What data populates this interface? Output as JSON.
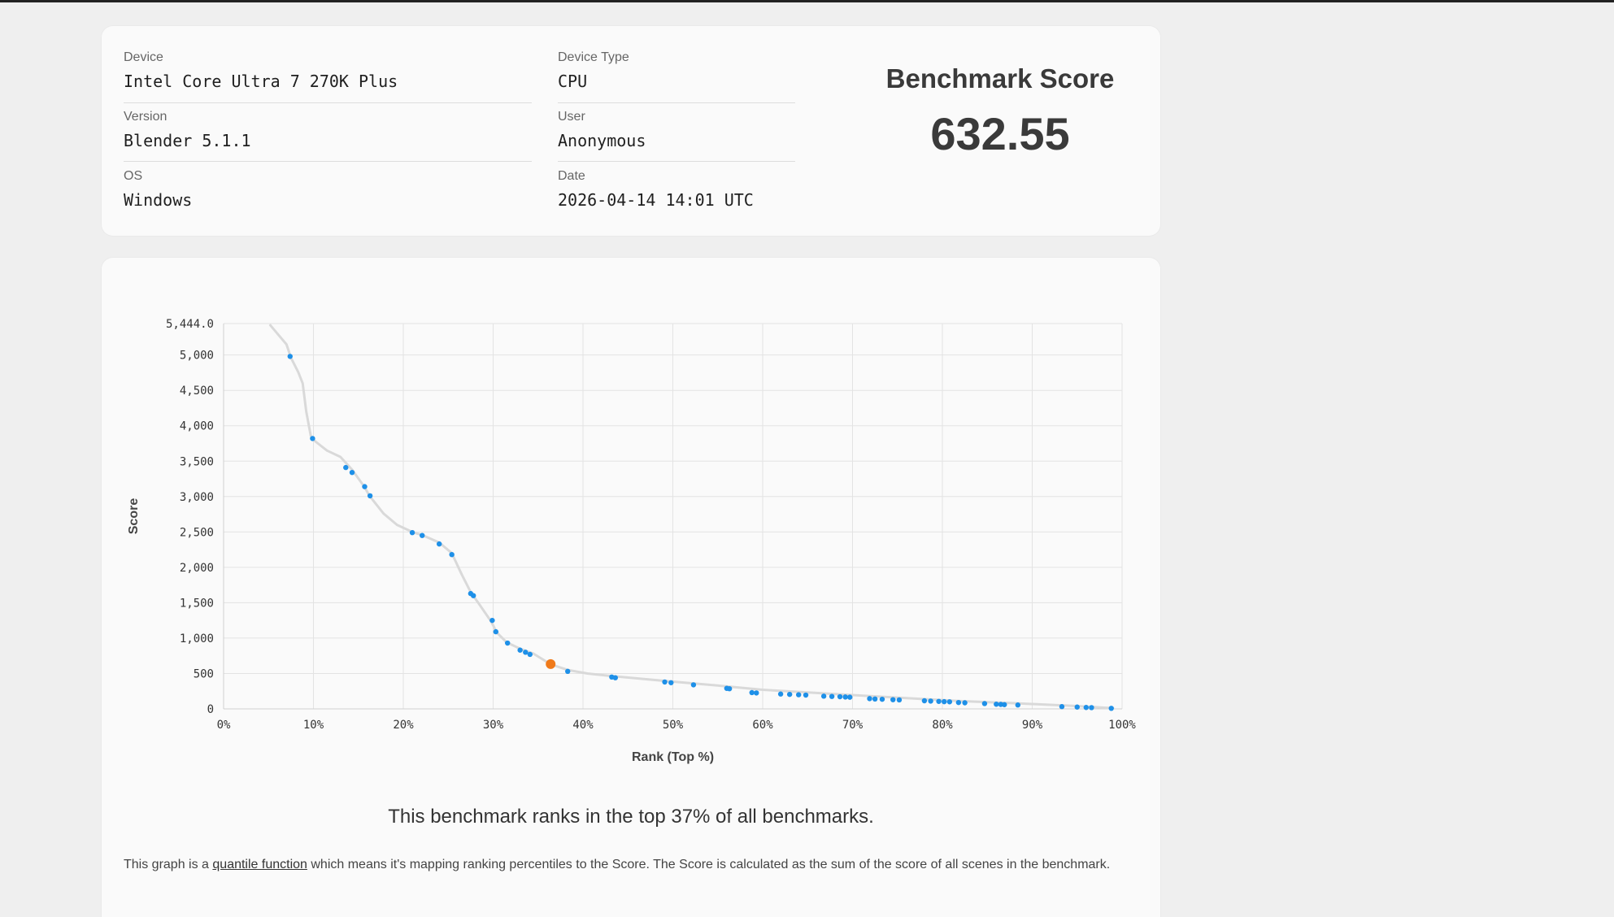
{
  "info": {
    "device_label": "Device",
    "device_value": "Intel Core Ultra 7 270K Plus",
    "device_type_label": "Device Type",
    "device_type_value": "CPU",
    "version_label": "Version",
    "version_value": "Blender 5.1.1",
    "user_label": "User",
    "user_value": "Anonymous",
    "os_label": "OS",
    "os_value": "Windows",
    "date_label": "Date",
    "date_value": "2026-04-14 14:01 UTC",
    "score_title": "Benchmark Score",
    "score_value": "632.55"
  },
  "chart_data": {
    "type": "scatter",
    "title": "",
    "xlabel": "Rank (Top %)",
    "ylabel": "Score",
    "xlim": [
      0,
      100
    ],
    "ylim": [
      0,
      5444
    ],
    "x_ticks": [
      "0%",
      "10%",
      "20%",
      "30%",
      "40%",
      "50%",
      "60%",
      "70%",
      "80%",
      "90%",
      "100%"
    ],
    "y_ticks": [
      "0",
      "500",
      "1,000",
      "1,500",
      "2,000",
      "2,500",
      "3,000",
      "3,500",
      "4,000",
      "4,500",
      "5,000",
      "5,444.0"
    ],
    "grid": true,
    "colors": {
      "points": "#1e90e8",
      "highlight": "#f07a1a",
      "curve": "#d9d9d9",
      "grid": "#e3e3e3"
    },
    "curve": [
      [
        5.2,
        5420
      ],
      [
        6.0,
        5300
      ],
      [
        7.0,
        5150
      ],
      [
        7.5,
        4960
      ],
      [
        8.3,
        4760
      ],
      [
        8.8,
        4600
      ],
      [
        9.2,
        4200
      ],
      [
        9.7,
        3860
      ],
      [
        10.2,
        3780
      ],
      [
        11.5,
        3650
      ],
      [
        13.0,
        3560
      ],
      [
        14.3,
        3380
      ],
      [
        15.6,
        3150
      ],
      [
        16.3,
        3000
      ],
      [
        17.8,
        2760
      ],
      [
        19.3,
        2600
      ],
      [
        21.0,
        2500
      ],
      [
        22.2,
        2450
      ],
      [
        24.0,
        2350
      ],
      [
        25.4,
        2200
      ],
      [
        26.5,
        1900
      ],
      [
        27.5,
        1650
      ],
      [
        28.5,
        1470
      ],
      [
        29.8,
        1230
      ],
      [
        30.4,
        1080
      ],
      [
        31.5,
        940
      ],
      [
        33.0,
        850
      ],
      [
        34.5,
        780
      ],
      [
        36.4,
        630
      ],
      [
        38.3,
        550
      ],
      [
        40.5,
        500
      ],
      [
        43.5,
        460
      ],
      [
        49.5,
        390
      ],
      [
        55.0,
        330
      ],
      [
        60.0,
        270
      ],
      [
        68.0,
        210
      ],
      [
        75.0,
        160
      ],
      [
        82.0,
        110
      ],
      [
        88.0,
        80
      ],
      [
        95.0,
        40
      ],
      [
        99.0,
        10
      ]
    ],
    "series": [
      {
        "x": [
          7.4,
          9.9,
          13.6,
          14.3,
          15.7,
          16.3,
          21.0,
          22.1,
          24.0,
          25.4,
          27.5,
          27.8,
          29.9,
          30.3,
          31.6,
          33.0,
          33.6,
          34.1,
          38.3,
          43.2,
          43.6,
          49.1,
          49.8,
          52.3,
          56.0,
          56.3,
          58.8,
          59.3,
          62.0,
          63.0,
          64.0,
          64.8,
          66.8,
          67.7,
          68.6,
          69.2,
          69.7,
          71.9,
          72.5,
          73.3,
          74.5,
          75.2,
          78.0,
          78.7,
          79.6,
          80.2,
          80.8,
          81.8,
          82.5,
          84.7,
          86.0,
          86.5,
          86.9,
          88.4,
          93.3,
          95.0,
          96.0,
          96.6,
          98.8
        ],
        "y": [
          4980,
          3820,
          3410,
          3340,
          3140,
          3010,
          2490,
          2450,
          2330,
          2180,
          1630,
          1600,
          1250,
          1090,
          930,
          830,
          800,
          770,
          530,
          450,
          440,
          380,
          370,
          340,
          290,
          285,
          230,
          225,
          210,
          205,
          200,
          195,
          180,
          176,
          172,
          168,
          165,
          145,
          140,
          136,
          130,
          127,
          115,
          110,
          106,
          102,
          100,
          90,
          86,
          75,
          66,
          63,
          60,
          55,
          32,
          26,
          20,
          18,
          8
        ]
      }
    ],
    "highlight": {
      "x": 36.4,
      "y": 632.55
    }
  },
  "summary_text": "This benchmark ranks in the top 37% of all benchmarks.",
  "footer": {
    "before_link": "This graph is a ",
    "link_text": "quantile function",
    "after_link": " which means it's mapping ranking percentiles to the Score. The Score is calculated as the sum of the score of all scenes in the benchmark."
  }
}
